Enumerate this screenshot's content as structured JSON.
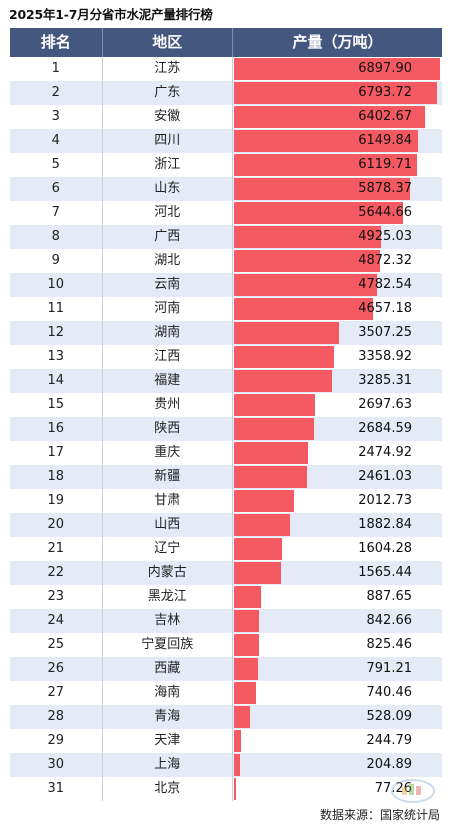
{
  "title": "2025年1-7月分省市水泥产量排行榜",
  "header": {
    "rank": "排名",
    "region": "地区",
    "value": "产量（万吨）"
  },
  "colors": {
    "header_bg": "#43577f",
    "bar": "#f55a62",
    "stripe": "#e4eaf6"
  },
  "chart_data": {
    "type": "bar",
    "title": "2025年1-7月分省市水泥产量排行榜",
    "ylabel": "产量（万吨）",
    "categories": [
      "江苏",
      "广东",
      "安徽",
      "四川",
      "浙江",
      "山东",
      "河北",
      "广西",
      "湖北",
      "云南",
      "河南",
      "湖南",
      "江西",
      "福建",
      "贵州",
      "陕西",
      "重庆",
      "新疆",
      "甘肃",
      "山西",
      "辽宁",
      "内蒙古",
      "黑龙江",
      "吉林",
      "宁夏回族",
      "西藏",
      "海南",
      "青海",
      "天津",
      "上海",
      "北京"
    ],
    "ranks": [
      "1",
      "2",
      "3",
      "4",
      "5",
      "6",
      "7",
      "8",
      "9",
      "10",
      "11",
      "12",
      "13",
      "14",
      "15",
      "16",
      "17",
      "18",
      "19",
      "20",
      "21",
      "22",
      "23",
      "24",
      "25",
      "26",
      "27",
      "28",
      "29",
      "30",
      "31"
    ],
    "values": [
      6897.9,
      6793.72,
      6402.67,
      6149.84,
      6119.71,
      5878.37,
      5644.66,
      4925.03,
      4872.32,
      4782.54,
      4657.18,
      3507.25,
      3358.92,
      3285.31,
      2697.63,
      2684.59,
      2474.92,
      2461.03,
      2012.73,
      1882.84,
      1604.28,
      1565.44,
      887.65,
      842.66,
      825.46,
      791.21,
      740.46,
      528.09,
      244.79,
      204.89,
      77.26
    ],
    "labels": [
      "6897.90",
      "6793.72",
      "6402.67",
      "6149.84",
      "6119.71",
      "5878.37",
      "5644.66",
      "4925.03",
      "4872.32",
      "4782.54",
      "4657.18",
      "3507.25",
      "3358.92",
      "3285.31",
      "2697.63",
      "2684.59",
      "2474.92",
      "2461.03",
      "2012.73",
      "1882.84",
      "1604.28",
      "1565.44",
      "887.65",
      "842.66",
      "825.46",
      "791.21",
      "740.46",
      "528.09",
      "244.79",
      "204.89",
      "77.26"
    ]
  },
  "source": "数据来源：国家统计局"
}
